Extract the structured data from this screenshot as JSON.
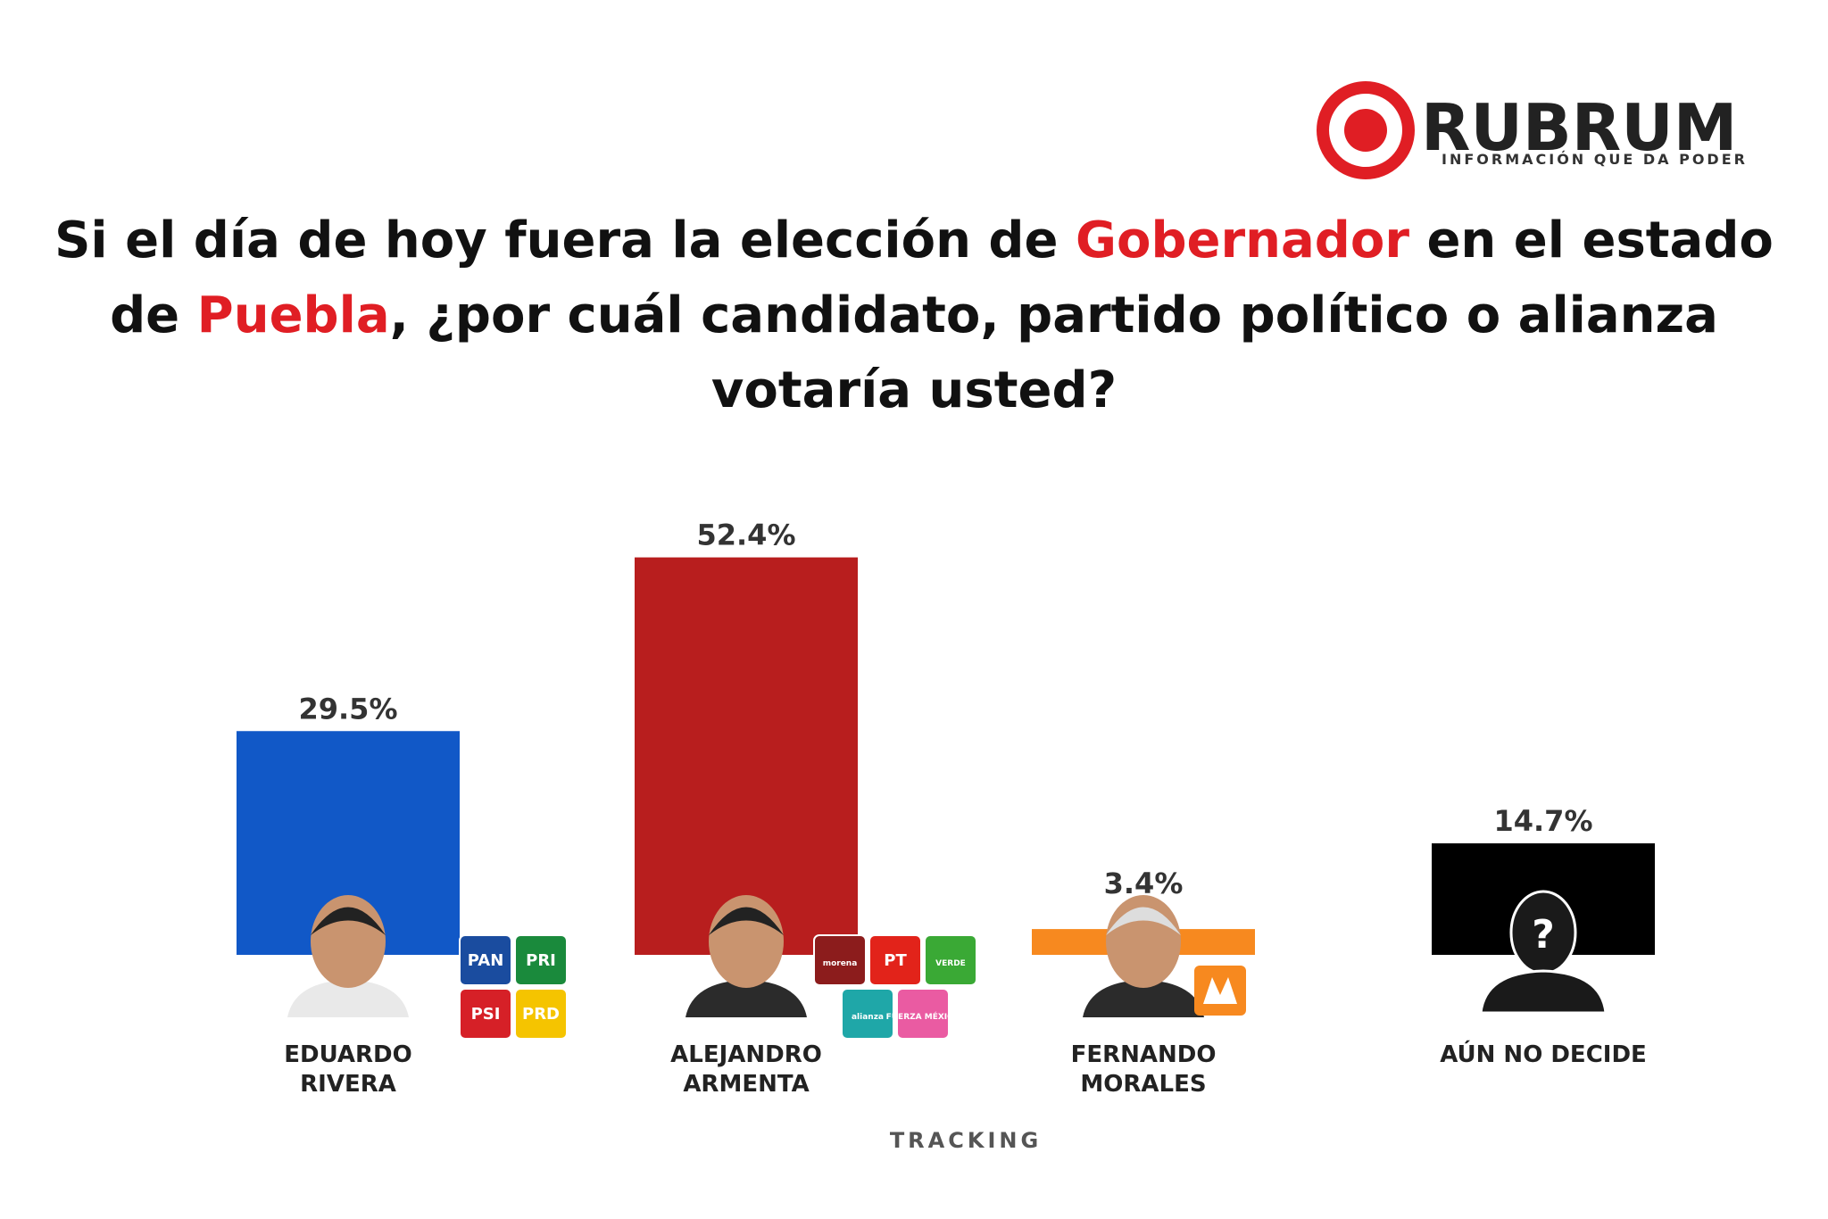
{
  "brand": {
    "name": "RUBRUM",
    "tagline": "INFORMACIÓN QUE DA PODER"
  },
  "chart_data": {
    "type": "bar",
    "title_parts": [
      "Si el día de hoy fuera la elección de ",
      "Gobernador",
      " en el estado de ",
      "Puebla",
      ", ¿por cuál candidato, partido político o alianza votaría usted?"
    ],
    "title_colors": [
      "#111111",
      "#e01e24",
      "#111111",
      "#e01e24",
      "#111111"
    ],
    "categories": [
      "EDUARDO RIVERA",
      "ALEJANDRO ARMENTA",
      "FERNANDO MORALES",
      "AÚN NO DECIDE"
    ],
    "values": [
      29.5,
      52.4,
      3.4,
      14.7
    ],
    "value_labels": [
      "29.5%",
      "52.4%",
      "3.4%",
      "14.7%"
    ],
    "colors": [
      "#1158c7",
      "#b81e1e",
      "#f7891f",
      "#000000"
    ],
    "parties": [
      [
        {
          "name": "PAN",
          "color": "#1a4c9f"
        },
        {
          "name": "PRI",
          "color": "#1a8a3c"
        },
        {
          "name": "PSI",
          "color": "#d62027"
        },
        {
          "name": "PRD",
          "color": "#f5c400"
        }
      ],
      [
        {
          "name": "morena",
          "color": "#8c1c1c"
        },
        {
          "name": "PT",
          "color": "#e2231a"
        },
        {
          "name": "VERDE",
          "color": "#3aa935"
        },
        {
          "name": "alianza",
          "color": "#1fa7a8"
        },
        {
          "name": "FUERZA MÉXICO",
          "color": "#ea5ba2"
        }
      ],
      [],
      []
    ],
    "unknown_icon": "?",
    "footer": "TRACKING"
  }
}
